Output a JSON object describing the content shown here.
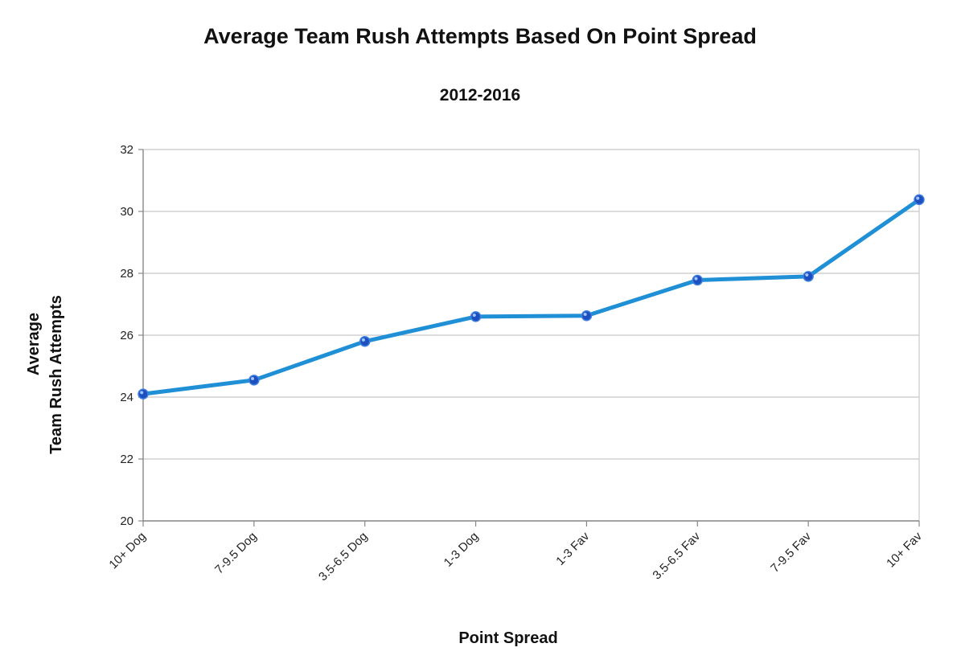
{
  "chart_data": {
    "type": "line",
    "title": "Average Team Rush Attempts Based On Point Spread",
    "subtitle": "2012-2016",
    "xlabel": "Point Spread",
    "ylabel_lines": [
      "Average",
      "Team Rush Attempts"
    ],
    "categories": [
      "10+ Dog",
      "7-9.5 Dog",
      "3.5-6.5 Dog",
      "1-3 Dog",
      "1-3 Fav",
      "3.5-6.5 Fav",
      "7-9.5 Fav",
      "10+ Fav"
    ],
    "series": [
      {
        "values": [
          24.1,
          24.55,
          25.8,
          26.6,
          26.63,
          27.78,
          27.9,
          30.38
        ]
      }
    ],
    "ylim": [
      20,
      32
    ],
    "yticks": [
      20,
      22,
      24,
      26,
      28,
      30,
      32
    ],
    "grid": true,
    "legend": "none",
    "line_color": "#1f8fd6",
    "marker_color": "#1d4fbf"
  }
}
